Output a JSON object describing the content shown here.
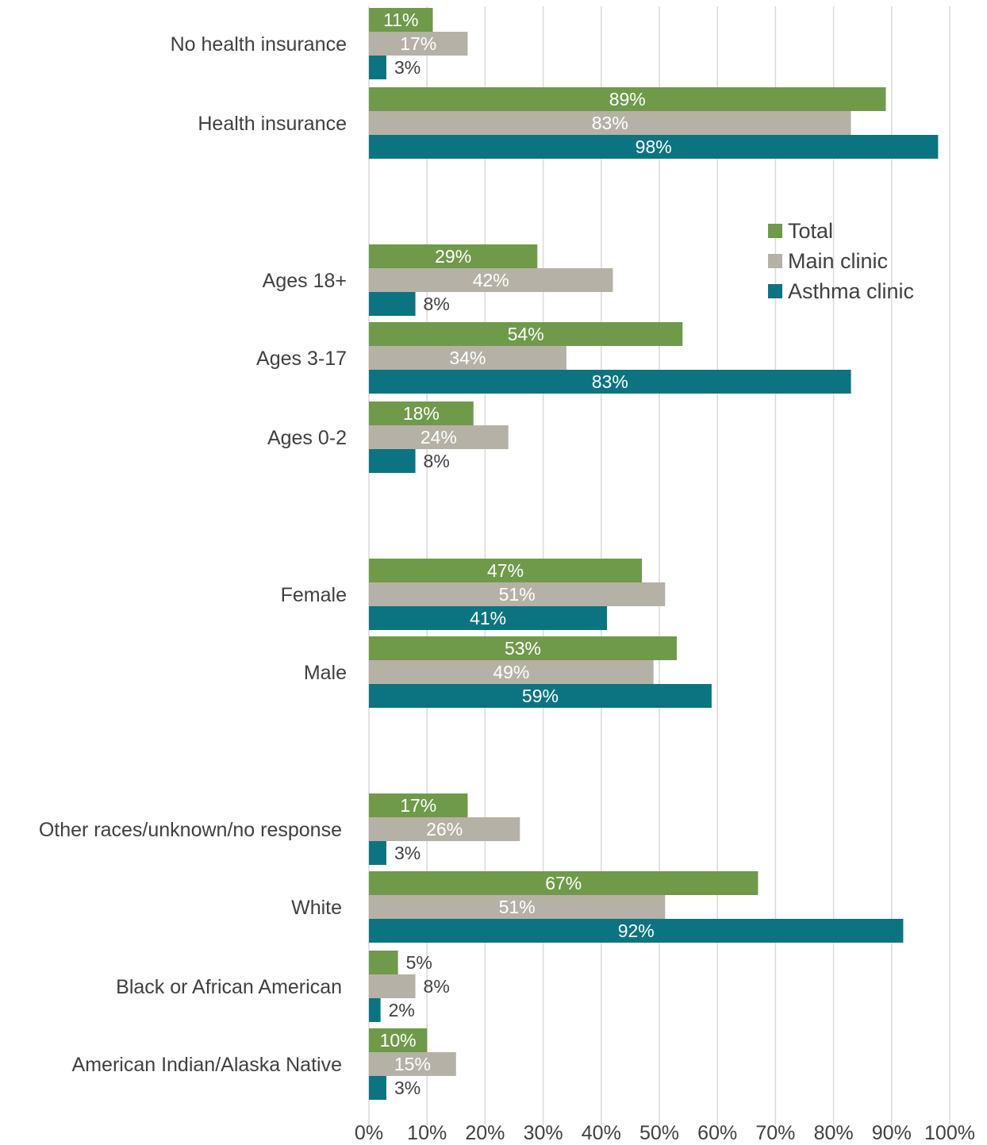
{
  "chart_data": {
    "type": "bar",
    "orientation": "horizontal",
    "title": "",
    "xlabel": "",
    "ylabel": "",
    "xlim": [
      0,
      100
    ],
    "x_ticks": [
      "0%",
      "10%",
      "20%",
      "30%",
      "40%",
      "50%",
      "60%",
      "70%",
      "80%",
      "90%",
      "100%"
    ],
    "grid": "vertical",
    "legend_position": "right",
    "colors": {
      "Total": "#6f9a4a",
      "Main clinic": "#b6b1a6",
      "Asthma clinic": "#0b7480"
    },
    "categories": [
      "No health insurance",
      "Health insurance",
      "Ages 18+",
      "Ages 3-17",
      "Ages 0-2",
      "Female",
      "Male",
      "Other races/unknown/no response",
      "White",
      "Black or African American",
      "American Indian/Alaska Native"
    ],
    "series": [
      {
        "name": "Total",
        "values": [
          11,
          89,
          29,
          54,
          18,
          47,
          53,
          17,
          67,
          5,
          10
        ],
        "labels": [
          "11%",
          "89%",
          "29%",
          "54%",
          "18%",
          "47%",
          "53%",
          "17%",
          "67%",
          "5%",
          "10%"
        ]
      },
      {
        "name": "Main clinic",
        "values": [
          17,
          83,
          42,
          34,
          24,
          51,
          49,
          26,
          51,
          8,
          15
        ],
        "labels": [
          "17%",
          "83%",
          "42%",
          "34%",
          "24%",
          "51%",
          "49%",
          "26%",
          "51%",
          "8%",
          "15%"
        ]
      },
      {
        "name": "Asthma clinic",
        "values": [
          3,
          98,
          8,
          83,
          8,
          41,
          59,
          3,
          92,
          2,
          3
        ],
        "labels": [
          "3%",
          "98%",
          "8%",
          "83%",
          "8%",
          "41%",
          "59%",
          "3%",
          "92%",
          "2%",
          "3%"
        ]
      }
    ]
  }
}
